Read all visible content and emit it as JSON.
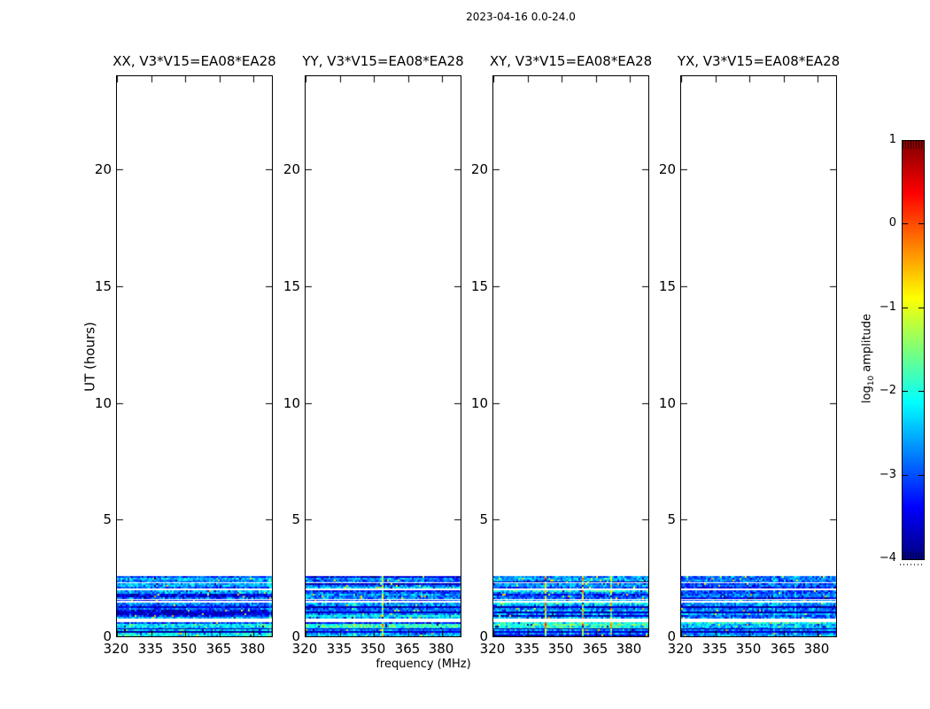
{
  "chart_data": {
    "type": "heatmap",
    "suptitle": "2023-04-16 0.0-24.0",
    "xlabel": "frequency (MHz)",
    "ylabel": "UT (hours)",
    "panels": [
      {
        "pol": "XX",
        "title": "XX, V3*V15=EA08*EA28"
      },
      {
        "pol": "YY",
        "title": "YY, V3*V15=EA08*EA28"
      },
      {
        "pol": "XY",
        "title": "XY, V3*V15=EA08*EA28"
      },
      {
        "pol": "YX",
        "title": "YX, V3*V15=EA08*EA28"
      }
    ],
    "x_axis": {
      "lim": [
        320,
        388
      ],
      "ticks": [
        320,
        335,
        350,
        365,
        380
      ],
      "unit": "MHz"
    },
    "y_axis": {
      "lim": [
        0,
        24
      ],
      "ticks": [
        0,
        5,
        10,
        15,
        20
      ],
      "unit": "hours"
    },
    "colorbar": {
      "label_pre": "log",
      "label_sub": "10",
      "label_post": " amplitude",
      "lim": [
        -4,
        1
      ],
      "ticks": [
        {
          "v": 1,
          "label": "1"
        },
        {
          "v": 0,
          "label": "0"
        },
        {
          "v": -1,
          "label": "−1"
        },
        {
          "v": -2,
          "label": "−2"
        },
        {
          "v": -3,
          "label": "−3"
        },
        {
          "v": -4,
          "label": "−4"
        }
      ],
      "colormap": "jet",
      "jet_stops": [
        [
          0.0,
          "#000080"
        ],
        [
          0.125,
          "#0000ff"
        ],
        [
          0.25,
          "#0080ff"
        ],
        [
          0.375,
          "#00ffff"
        ],
        [
          0.5,
          "#7cff79"
        ],
        [
          0.625,
          "#ffff00"
        ],
        [
          0.75,
          "#ff8000"
        ],
        [
          0.875,
          "#ff0000"
        ],
        [
          1.0,
          "#800000"
        ]
      ]
    },
    "data_time_extent_hours": [
      0.0,
      2.57
    ],
    "bands": [
      {
        "t0": 0.0,
        "t1": 0.17,
        "kind": "data2"
      },
      {
        "t0": 0.17,
        "t1": 0.22,
        "kind": "dark"
      },
      {
        "t0": 0.22,
        "t1": 0.3,
        "kind": "data2"
      },
      {
        "t0": 0.3,
        "t1": 0.36,
        "kind": "dark"
      },
      {
        "t0": 0.36,
        "t1": 0.59,
        "kind": "bright"
      },
      {
        "t0": 0.59,
        "t1": 0.76,
        "kind": "gap"
      },
      {
        "t0": 0.76,
        "t1": 1.0,
        "kind": "data"
      },
      {
        "t0": 1.0,
        "t1": 1.06,
        "kind": "dark"
      },
      {
        "t0": 1.06,
        "t1": 1.23,
        "kind": "data"
      },
      {
        "t0": 1.23,
        "t1": 1.29,
        "kind": "dark"
      },
      {
        "t0": 1.29,
        "t1": 1.46,
        "kind": "data"
      },
      {
        "t0": 1.46,
        "t1": 1.51,
        "kind": "gap"
      },
      {
        "t0": 1.51,
        "t1": 1.55,
        "kind": "data"
      },
      {
        "t0": 1.55,
        "t1": 1.6,
        "kind": "gap"
      },
      {
        "t0": 1.6,
        "t1": 1.97,
        "kind": "data"
      },
      {
        "t0": 1.97,
        "t1": 2.05,
        "kind": "gap"
      },
      {
        "t0": 2.05,
        "t1": 2.27,
        "kind": "data"
      },
      {
        "t0": 2.27,
        "t1": 2.33,
        "kind": "gap"
      },
      {
        "t0": 2.33,
        "t1": 2.57,
        "kind": "data"
      }
    ],
    "band_levels": {
      "data": -2.75,
      "data2": -2.5,
      "bright": -2.15,
      "dark": -3.65
    },
    "panel_level_offsets": [
      0,
      0,
      0,
      -0.12
    ]
  }
}
